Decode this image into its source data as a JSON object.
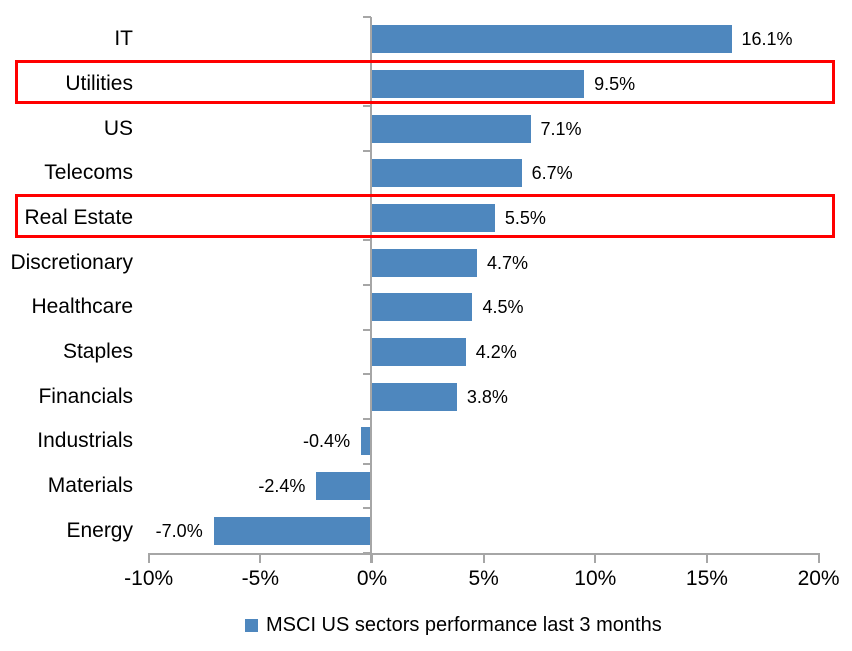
{
  "chart_data": {
    "type": "bar",
    "orientation": "horizontal",
    "title": "",
    "categories": [
      "IT",
      "Utilities",
      "US",
      "Telecoms",
      "Real Estate",
      "Discretionary",
      "Healthcare",
      "Staples",
      "Financials",
      "Industrials",
      "Materials",
      "Energy"
    ],
    "values": [
      16.1,
      9.5,
      7.1,
      6.7,
      5.5,
      4.7,
      4.5,
      4.2,
      3.8,
      -0.4,
      -2.4,
      -7.0
    ],
    "value_labels": [
      "16.1%",
      "9.5%",
      "7.1%",
      "6.7%",
      "5.5%",
      "4.7%",
      "4.5%",
      "4.2%",
      "3.8%",
      "-0.4%",
      "-2.4%",
      "-7.0%"
    ],
    "highlighted_categories": [
      "Utilities",
      "Real Estate"
    ],
    "x_axis": {
      "range": [
        -10,
        20
      ],
      "ticks": [
        -10,
        -5,
        0,
        5,
        10,
        15,
        20
      ],
      "tick_labels": [
        "-10%",
        "-5%",
        "0%",
        "5%",
        "10%",
        "15%",
        "20%"
      ]
    },
    "legend": {
      "label": "MSCI US sectors performance last 3 months",
      "position": "bottom",
      "marker": "square"
    },
    "grid": "off",
    "colors": {
      "bar": "#4E87BE",
      "highlight_box": "#FF0000",
      "axis": "#A6A6A6",
      "text": "#000000"
    }
  }
}
